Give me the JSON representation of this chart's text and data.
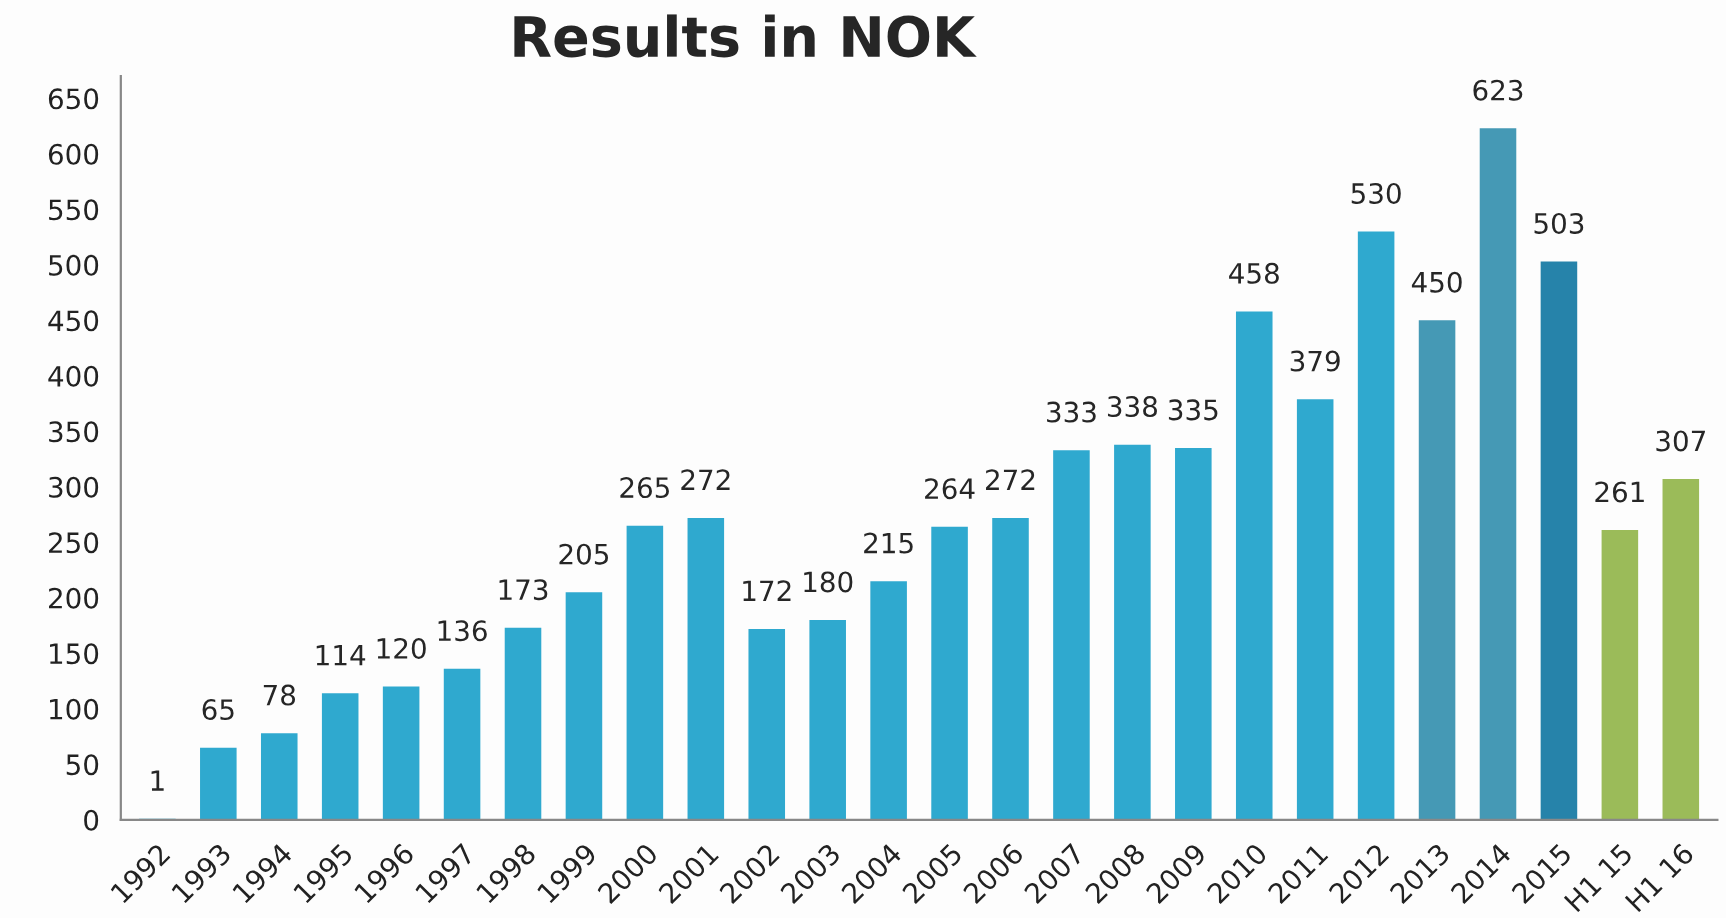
{
  "chart_data": {
    "type": "bar",
    "title": "Results in NOK",
    "categories": [
      "1992",
      "1993",
      "1994",
      "1995",
      "1996",
      "1997",
      "1998",
      "1999",
      "2000",
      "2001",
      "2002",
      "2003",
      "2004",
      "2005",
      "2006",
      "2007",
      "2008",
      "2009",
      "2010",
      "2011",
      "2012",
      "2013",
      "2014",
      "2015",
      "H1 15",
      "H1 16"
    ],
    "values": [
      1,
      65,
      78,
      114,
      120,
      136,
      173,
      205,
      265,
      272,
      172,
      180,
      215,
      264,
      272,
      333,
      338,
      335,
      458,
      379,
      530,
      450,
      623,
      503,
      261,
      307
    ],
    "colors": [
      "#2fa9cf",
      "#2fa9cf",
      "#2fa9cf",
      "#2fa9cf",
      "#2fa9cf",
      "#2fa9cf",
      "#2fa9cf",
      "#2fa9cf",
      "#2fa9cf",
      "#2fa9cf",
      "#2fa9cf",
      "#2fa9cf",
      "#2fa9cf",
      "#2fa9cf",
      "#2fa9cf",
      "#2fa9cf",
      "#2fa9cf",
      "#2fa9cf",
      "#2fa9cf",
      "#2fa9cf",
      "#2fa9cf",
      "#4599b5",
      "#4599b5",
      "#2683aa",
      "#9bbb59",
      "#9bbb59"
    ],
    "ylim": [
      0,
      670
    ],
    "yticks": [
      0,
      50,
      100,
      150,
      200,
      250,
      300,
      350,
      400,
      450,
      500,
      550,
      600,
      650
    ],
    "data_labels": true,
    "grid": false,
    "legend": false
  }
}
